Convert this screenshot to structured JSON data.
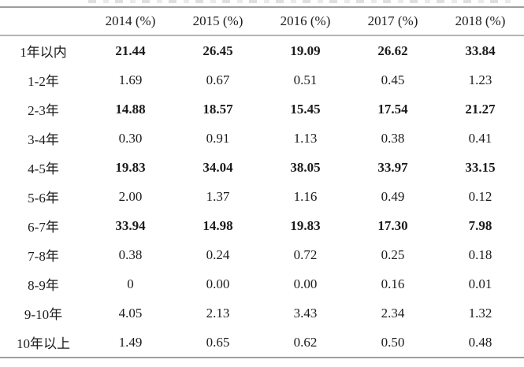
{
  "table": {
    "columns": [
      "",
      "2014 (%)",
      "2015 (%)",
      "2016 (%)",
      "2017 (%)",
      "2018 (%)"
    ],
    "rows": [
      {
        "label": "1年以内",
        "values": [
          "21.44",
          "26.45",
          "19.09",
          "26.62",
          "33.84"
        ],
        "bold": true
      },
      {
        "label": "1-2年",
        "values": [
          "1.69",
          "0.67",
          "0.51",
          "0.45",
          "1.23"
        ],
        "bold": false
      },
      {
        "label": "2-3年",
        "values": [
          "14.88",
          "18.57",
          "15.45",
          "17.54",
          "21.27"
        ],
        "bold": true
      },
      {
        "label": "3-4年",
        "values": [
          "0.30",
          "0.91",
          "1.13",
          "0.38",
          "0.41"
        ],
        "bold": false
      },
      {
        "label": "4-5年",
        "values": [
          "19.83",
          "34.04",
          "38.05",
          "33.97",
          "33.15"
        ],
        "bold": true
      },
      {
        "label": "5-6年",
        "values": [
          "2.00",
          "1.37",
          "1.16",
          "0.49",
          "0.12"
        ],
        "bold": false
      },
      {
        "label": "6-7年",
        "values": [
          "33.94",
          "14.98",
          "19.83",
          "17.30",
          "7.98"
        ],
        "bold": true
      },
      {
        "label": "7-8年",
        "values": [
          "0.38",
          "0.24",
          "0.72",
          "0.25",
          "0.18"
        ],
        "bold": false
      },
      {
        "label": "8-9年",
        "values": [
          "0",
          "0.00",
          "0.00",
          "0.16",
          "0.01"
        ],
        "bold": false
      },
      {
        "label": "9-10年",
        "values": [
          "4.05",
          "2.13",
          "3.43",
          "2.34",
          "1.32"
        ],
        "bold": false
      },
      {
        "label": "10年以上",
        "values": [
          "1.49",
          "0.65",
          "0.62",
          "0.50",
          "0.48"
        ],
        "bold": false
      }
    ]
  },
  "colors": {
    "rule": "#9e9e9e",
    "header_rule": "#b3b3b3",
    "text": "#1b1b1b"
  }
}
